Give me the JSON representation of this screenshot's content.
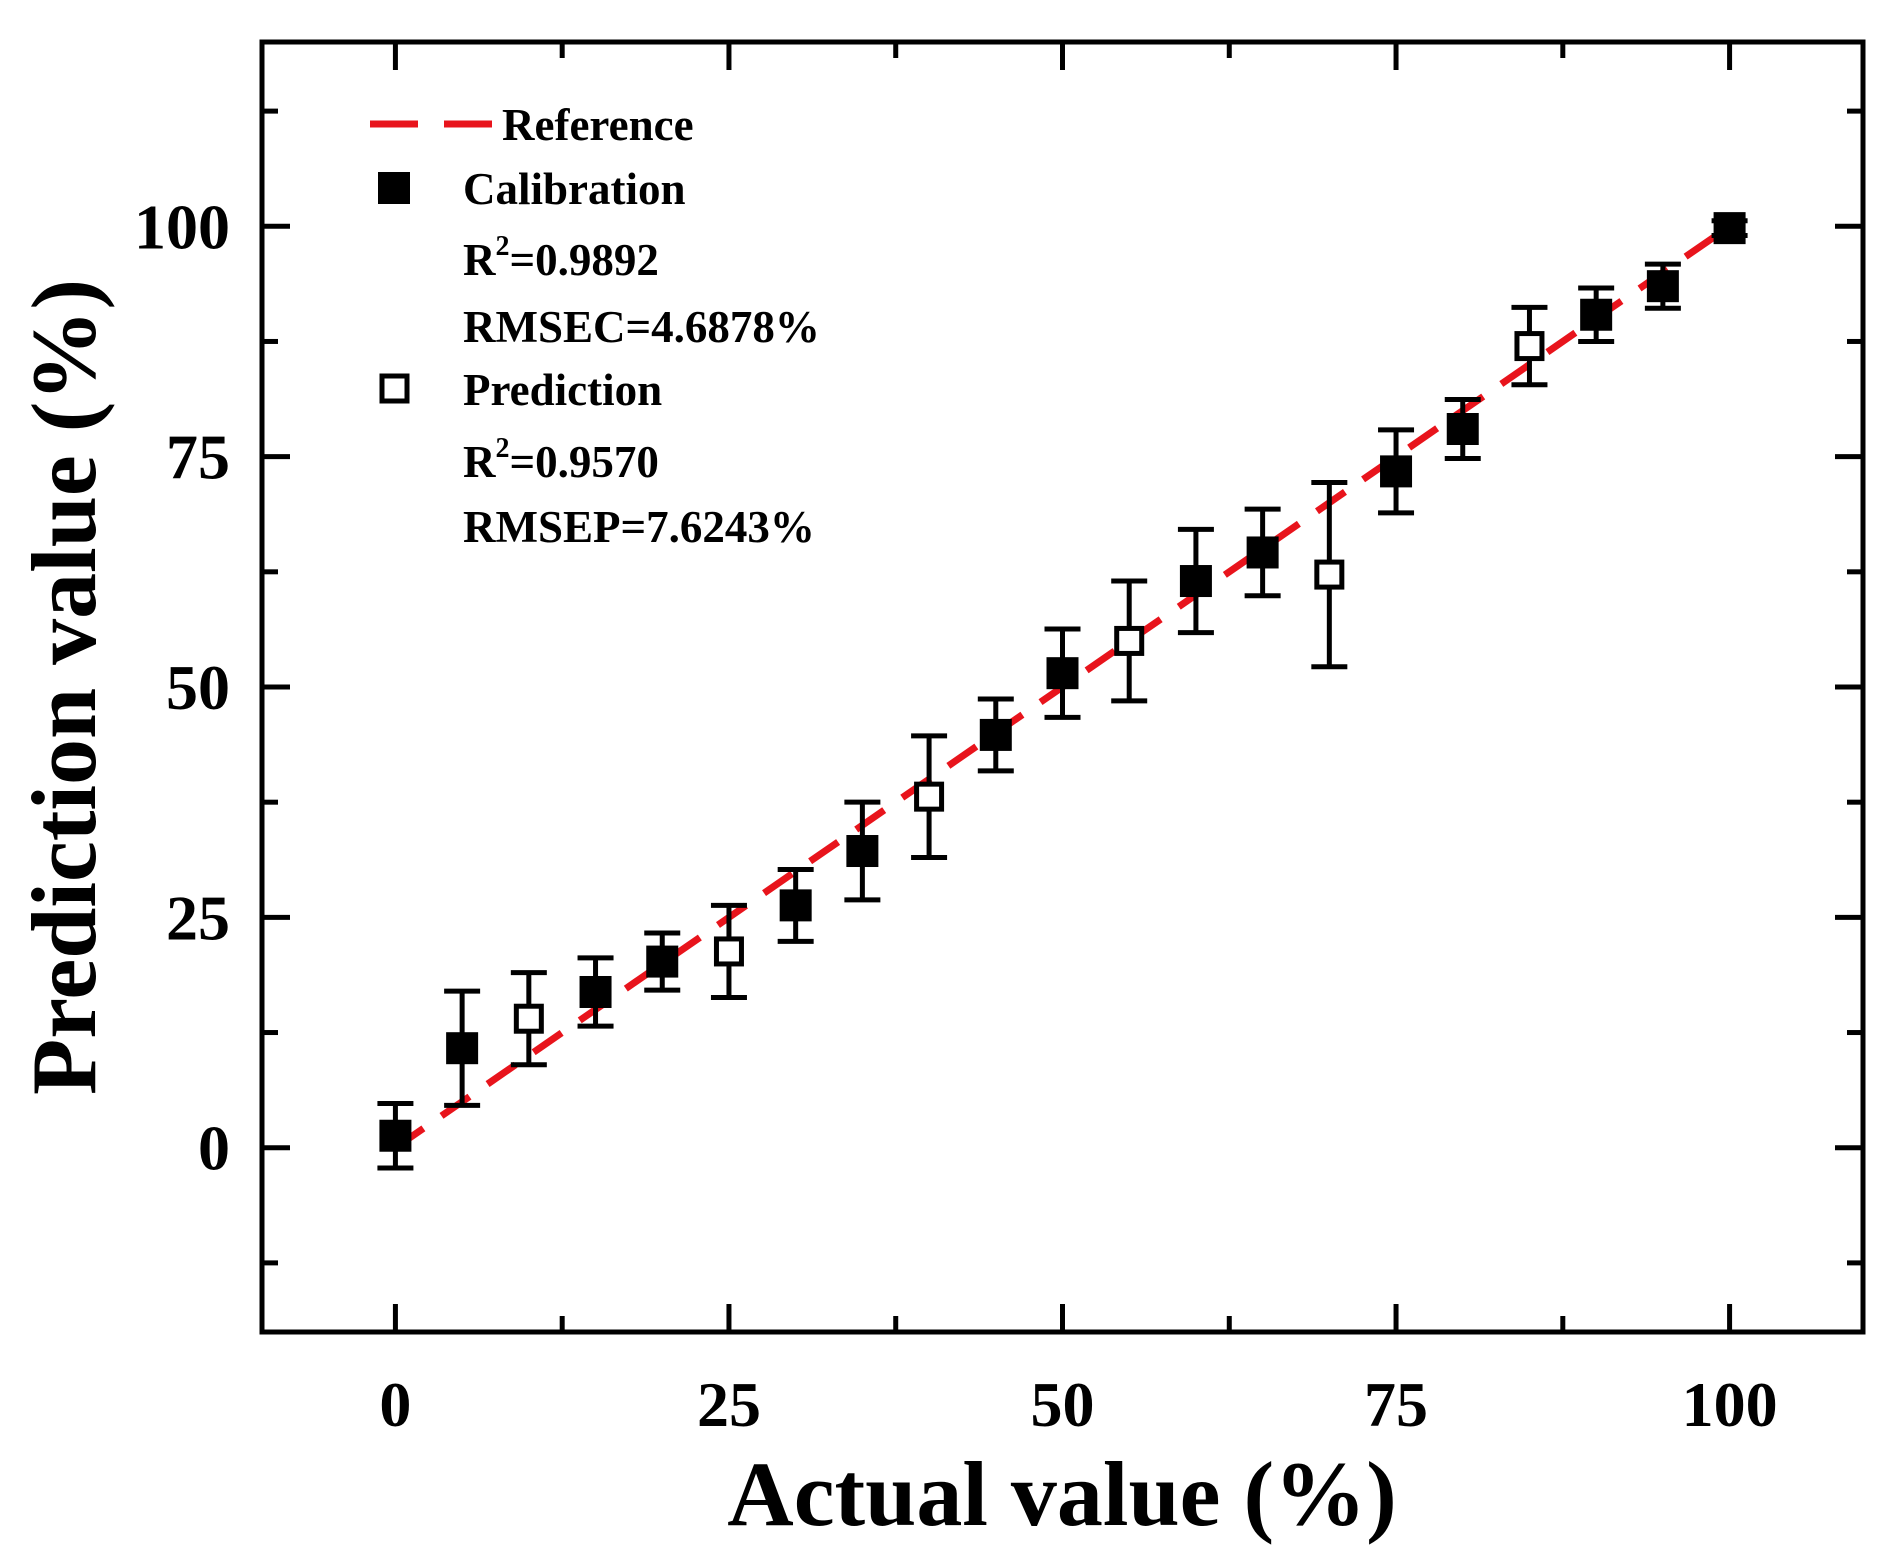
{
  "chart_data": {
    "type": "scatter",
    "title": "",
    "xlabel": "Actual value (%)",
    "ylabel": "Prediction value (%)",
    "xlim": [
      -10,
      110
    ],
    "ylim": [
      -20,
      120
    ],
    "x_ticks": [
      0,
      25,
      50,
      75,
      100
    ],
    "y_ticks": [
      0,
      25,
      50,
      75,
      100
    ],
    "legend_position": "top-left",
    "series": [
      {
        "name": "Reference",
        "style": "dashed-line",
        "color": "#e8141c",
        "x": [
          0,
          100
        ],
        "y": [
          0,
          100
        ]
      },
      {
        "name": "Calibration",
        "style": "filled-square",
        "color": "#000000",
        "stats": [
          "R",
          "2",
          "=0.9892",
          "RMSEC=4.6878%"
        ],
        "x": [
          0,
          5,
          15,
          20,
          30,
          35,
          45,
          50,
          60,
          65,
          75,
          80,
          90,
          95,
          100
        ],
        "y": [
          1.3,
          10.8,
          16.9,
          20.2,
          26.3,
          32.2,
          44.8,
          51.5,
          61.5,
          64.6,
          73.4,
          78.0,
          90.4,
          93.5,
          99.8
        ],
        "err": [
          3.5,
          6.2,
          3.7,
          3.1,
          3.9,
          5.3,
          3.9,
          4.8,
          5.6,
          4.7,
          4.5,
          3.2,
          2.9,
          2.4,
          0.8
        ]
      },
      {
        "name": "Prediction",
        "style": "open-square",
        "color": "#000000",
        "stats": [
          "R",
          "2",
          "=0.9570",
          "RMSEP=7.6243%"
        ],
        "x": [
          10,
          25,
          40,
          55,
          70,
          85
        ],
        "y": [
          14.0,
          21.3,
          38.1,
          55.0,
          62.2,
          87.0
        ],
        "err": [
          5.0,
          5.0,
          6.6,
          6.5,
          10.0,
          4.2
        ]
      }
    ]
  }
}
